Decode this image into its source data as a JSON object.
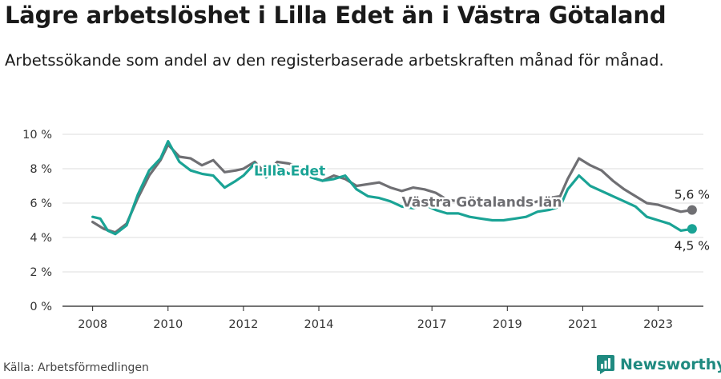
{
  "header": {
    "title": "Lägre arbetslöshet i Lilla Edet än i Västra Götaland",
    "subtitle": "Arbetssökande som andel av den registerbaserade arbetskraften månad för månad."
  },
  "footer": {
    "source": "Källa: Arbetsförmedlingen",
    "brand": "Newsworthy"
  },
  "colors": {
    "lilla_edet": "#1aa395",
    "vastra_gotaland": "#6f6f73",
    "grid": "#dcdcdc",
    "brand": "#1f8a80"
  },
  "chart_data": {
    "type": "line",
    "title": "Lägre arbetslöshet i Lilla Edet än i Västra Götaland",
    "xlabel": "",
    "ylabel": "",
    "xlim": [
      2007.2,
      2024.2
    ],
    "ylim": [
      0,
      10
    ],
    "y_ticks": [
      0,
      2,
      4,
      6,
      8,
      10
    ],
    "y_tick_labels": [
      "0 %",
      "2 %",
      "4 %",
      "6 %",
      "8 %",
      "10 %"
    ],
    "x_ticks": [
      2008,
      2010,
      2012,
      2014,
      2017,
      2019,
      2021,
      2023
    ],
    "x_tick_labels": [
      "2008",
      "2010",
      "2012",
      "2014",
      "2017",
      "2019",
      "2021",
      "2023"
    ],
    "grid": true,
    "series": [
      {
        "name": "Västra Götalands län",
        "label": "Västra Götalands län",
        "color": "#6f6f73",
        "end_label": "5,6 %",
        "x": [
          2008.0,
          2008.3,
          2008.6,
          2008.9,
          2009.2,
          2009.5,
          2009.8,
          2010.0,
          2010.3,
          2010.6,
          2010.9,
          2011.2,
          2011.5,
          2011.8,
          2012.0,
          2012.3,
          2012.6,
          2012.9,
          2013.2,
          2013.5,
          2013.8,
          2014.1,
          2014.4,
          2014.7,
          2015.0,
          2015.3,
          2015.6,
          2015.9,
          2016.2,
          2016.5,
          2016.8,
          2017.1,
          2017.4,
          2017.7,
          2018.0,
          2018.3,
          2018.6,
          2018.9,
          2019.2,
          2019.5,
          2019.8,
          2020.1,
          2020.4,
          2020.6,
          2020.9,
          2021.2,
          2021.5,
          2021.8,
          2022.1,
          2022.4,
          2022.7,
          2023.0,
          2023.3,
          2023.6,
          2023.9
        ],
        "values": [
          4.9,
          4.5,
          4.3,
          4.8,
          6.3,
          7.6,
          8.5,
          9.4,
          8.7,
          8.6,
          8.2,
          8.5,
          7.8,
          7.9,
          8.0,
          8.4,
          7.7,
          8.4,
          8.3,
          8.1,
          7.5,
          7.3,
          7.6,
          7.4,
          7.0,
          7.1,
          7.2,
          6.9,
          6.7,
          6.9,
          6.8,
          6.6,
          6.2,
          6.1,
          6.0,
          5.9,
          5.8,
          5.9,
          5.9,
          5.9,
          6.1,
          6.3,
          6.4,
          7.4,
          8.6,
          8.2,
          7.9,
          7.3,
          6.8,
          6.4,
          6.0,
          5.9,
          5.7,
          5.5,
          5.6
        ]
      },
      {
        "name": "Lilla Edet",
        "label": "Lilla Edet",
        "color": "#1aa395",
        "end_label": "4,5 %",
        "x": [
          2008.0,
          2008.2,
          2008.4,
          2008.6,
          2008.9,
          2009.2,
          2009.5,
          2009.8,
          2010.0,
          2010.3,
          2010.6,
          2010.9,
          2011.2,
          2011.5,
          2011.8,
          2012.0,
          2012.3,
          2012.6,
          2012.9,
          2013.2,
          2013.5,
          2013.8,
          2014.1,
          2014.4,
          2014.7,
          2015.0,
          2015.3,
          2015.6,
          2015.9,
          2016.2,
          2016.5,
          2016.8,
          2017.1,
          2017.4,
          2017.7,
          2018.0,
          2018.3,
          2018.6,
          2018.9,
          2019.2,
          2019.5,
          2019.8,
          2020.1,
          2020.4,
          2020.6,
          2020.9,
          2021.2,
          2021.5,
          2021.8,
          2022.1,
          2022.4,
          2022.7,
          2023.0,
          2023.3,
          2023.6,
          2023.9
        ],
        "values": [
          5.2,
          5.1,
          4.4,
          4.2,
          4.7,
          6.5,
          7.9,
          8.6,
          9.6,
          8.4,
          7.9,
          7.7,
          7.6,
          6.9,
          7.3,
          7.6,
          8.3,
          7.5,
          8.2,
          7.7,
          7.9,
          7.5,
          7.3,
          7.4,
          7.6,
          6.8,
          6.4,
          6.3,
          6.1,
          5.8,
          5.7,
          5.9,
          5.6,
          5.4,
          5.4,
          5.2,
          5.1,
          5.0,
          5.0,
          5.1,
          5.2,
          5.5,
          5.6,
          5.8,
          6.8,
          7.6,
          7.0,
          6.7,
          6.4,
          6.1,
          5.8,
          5.2,
          5.0,
          4.8,
          4.4,
          4.5
        ]
      }
    ]
  }
}
